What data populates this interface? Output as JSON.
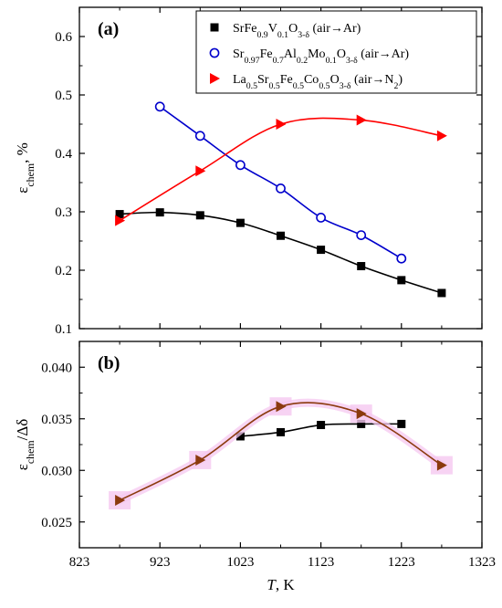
{
  "chart_data": [
    {
      "type": "line",
      "panel_label": "(a)",
      "x_range": [
        823,
        1323
      ],
      "ylim": [
        0.1,
        0.65
      ],
      "y_ticks": [
        "0.1",
        "0.2",
        "0.3",
        "0.4",
        "0.5",
        "0.6"
      ],
      "y_tick_values": [
        0.1,
        0.2,
        0.3,
        0.4,
        0.5,
        0.6
      ],
      "ylabel": {
        "main": "ε",
        "sub": "chem",
        "suffix": ", %"
      },
      "legend_position": "top-right",
      "legend": [
        {
          "parts": [
            [
              "SrFe",
              ""
            ],
            [
              "0.9",
              "sub"
            ],
            [
              "V",
              ""
            ],
            [
              "0.1",
              "sub"
            ],
            [
              "O",
              ""
            ],
            [
              "3-δ",
              "sub"
            ],
            [
              " (air→Ar)",
              ""
            ]
          ]
        },
        {
          "parts": [
            [
              "Sr",
              ""
            ],
            [
              "0.97",
              "sub"
            ],
            [
              "Fe",
              ""
            ],
            [
              "0.7",
              "sub"
            ],
            [
              "Al",
              ""
            ],
            [
              "0.2",
              "sub"
            ],
            [
              "Mo",
              ""
            ],
            [
              "0.1",
              "sub"
            ],
            [
              "O",
              ""
            ],
            [
              "3-δ",
              "sub"
            ],
            [
              " (air→Ar)",
              ""
            ]
          ]
        },
        {
          "parts": [
            [
              "La",
              ""
            ],
            [
              "0.5",
              "sub"
            ],
            [
              "Sr",
              ""
            ],
            [
              "0.5",
              "sub"
            ],
            [
              "Fe",
              ""
            ],
            [
              "0.5",
              "sub"
            ],
            [
              "Co",
              ""
            ],
            [
              "0.5",
              "sub"
            ],
            [
              "O",
              ""
            ],
            [
              "3-δ",
              "sub"
            ],
            [
              " (air→N",
              ""
            ],
            [
              "2",
              "sub"
            ],
            [
              ")",
              ""
            ]
          ]
        }
      ],
      "series": [
        {
          "marker": "square-filled",
          "color": "#000000",
          "x": [
            873,
            923,
            973,
            1023,
            1073,
            1123,
            1173,
            1223,
            1273
          ],
          "y": [
            0.296,
            0.299,
            0.294,
            0.281,
            0.259,
            0.235,
            0.207,
            0.183,
            0.161
          ]
        },
        {
          "marker": "circle-open",
          "color": "#0000cc",
          "x": [
            923,
            973,
            1023,
            1073,
            1123,
            1173,
            1223
          ],
          "y": [
            0.48,
            0.43,
            0.38,
            0.34,
            0.29,
            0.26,
            0.22
          ]
        },
        {
          "marker": "triangle-right-filled",
          "color": "#ff0000",
          "x": [
            873,
            973,
            1073,
            1173,
            1273
          ],
          "y": [
            0.285,
            0.37,
            0.45,
            0.457,
            0.43
          ]
        }
      ]
    },
    {
      "type": "line",
      "panel_label": "(b)",
      "x_range": [
        823,
        1323
      ],
      "x_ticks": [
        "823",
        "923",
        "1023",
        "1123",
        "1223",
        "1323"
      ],
      "x_tick_values": [
        823,
        923,
        1023,
        1123,
        1223,
        1323
      ],
      "xlabel": {
        "italic": "T",
        "rest": ", K"
      },
      "ylim": [
        0.0225,
        0.0425
      ],
      "y_ticks": [
        "0.025",
        "0.030",
        "0.035",
        "0.040"
      ],
      "y_tick_values": [
        0.025,
        0.03,
        0.035,
        0.04
      ],
      "ylabel": {
        "main": "ε",
        "sub": "chem",
        "suffix": "/Δδ"
      },
      "series": [
        {
          "marker": "square-filled",
          "color": "#000000",
          "x": [
            1023,
            1073,
            1123,
            1173,
            1223
          ],
          "y": [
            0.0333,
            0.0337,
            0.0344,
            0.0345,
            0.0345
          ]
        },
        {
          "marker": "triangle-right-filled",
          "color": "#8b3a0e",
          "glow": "#f5c8f0",
          "x": [
            873,
            973,
            1073,
            1173,
            1273
          ],
          "y": [
            0.0271,
            0.031,
            0.0362,
            0.0355,
            0.0305
          ]
        }
      ]
    }
  ]
}
